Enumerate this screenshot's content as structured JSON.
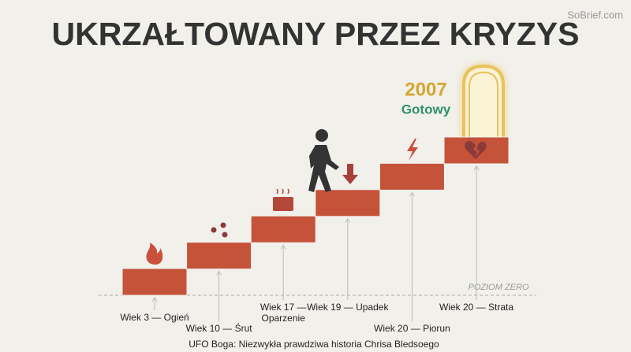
{
  "header": {
    "title": "UKRZAŁTOWANY PRZEZ KRYZYS",
    "watermark": "SoBrief.com"
  },
  "goal": {
    "year": "2007",
    "status": "Gotowy"
  },
  "zero_label": "POZIOM ZERO",
  "steps": [
    {
      "label": [
        "Wiek 3 — Ogień"
      ]
    },
    {
      "label": [
        "Wiek 10 — Śrut"
      ]
    },
    {
      "label": [
        "Wiek 17 —",
        "Oparzenie"
      ]
    },
    {
      "label": [
        "Wiek 19 — Upadek"
      ]
    },
    {
      "label": [
        "Wiek 20 — Piorun"
      ]
    },
    {
      "label": [
        "Wiek 20 — Strata"
      ]
    }
  ],
  "caption": "UFO Boga: Niezwykła prawdziwa historia Chrisa Bledsoego"
}
